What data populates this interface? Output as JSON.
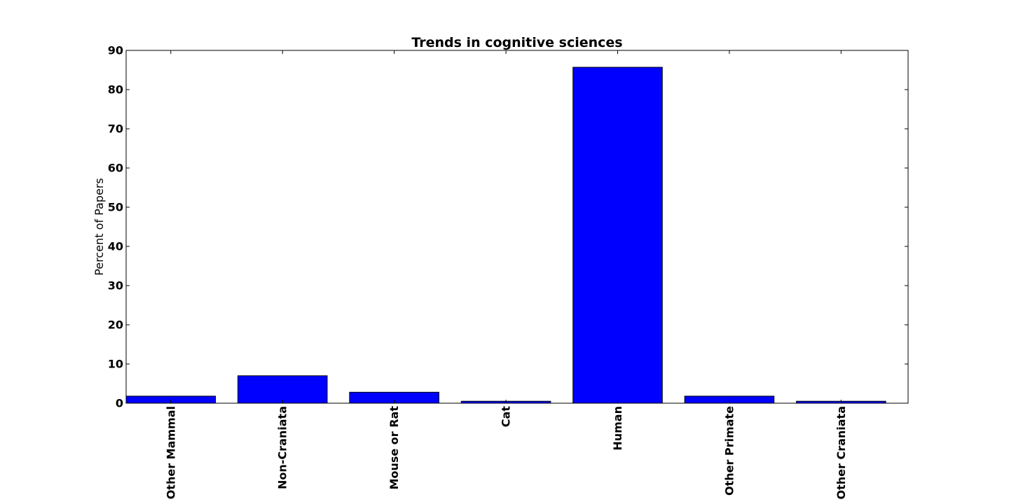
{
  "chart_data": {
    "type": "bar",
    "title": "Trends in cognitive sciences",
    "xlabel": "",
    "ylabel": "Percent of Papers",
    "categories": [
      "Other Mammal",
      "Non-Craniata",
      "Mouse or Rat",
      "Cat",
      "Human",
      "Other Primate",
      "Other Craniata"
    ],
    "values": [
      1.8,
      7.0,
      2.8,
      0.5,
      85.7,
      1.8,
      0.5
    ],
    "ylim": [
      0,
      90
    ],
    "yticks": [
      0,
      10,
      20,
      30,
      40,
      50,
      60,
      70,
      80,
      90
    ],
    "grid": false,
    "legend": "none",
    "bar_color": "#0000ff",
    "edge_color": "#000000"
  }
}
